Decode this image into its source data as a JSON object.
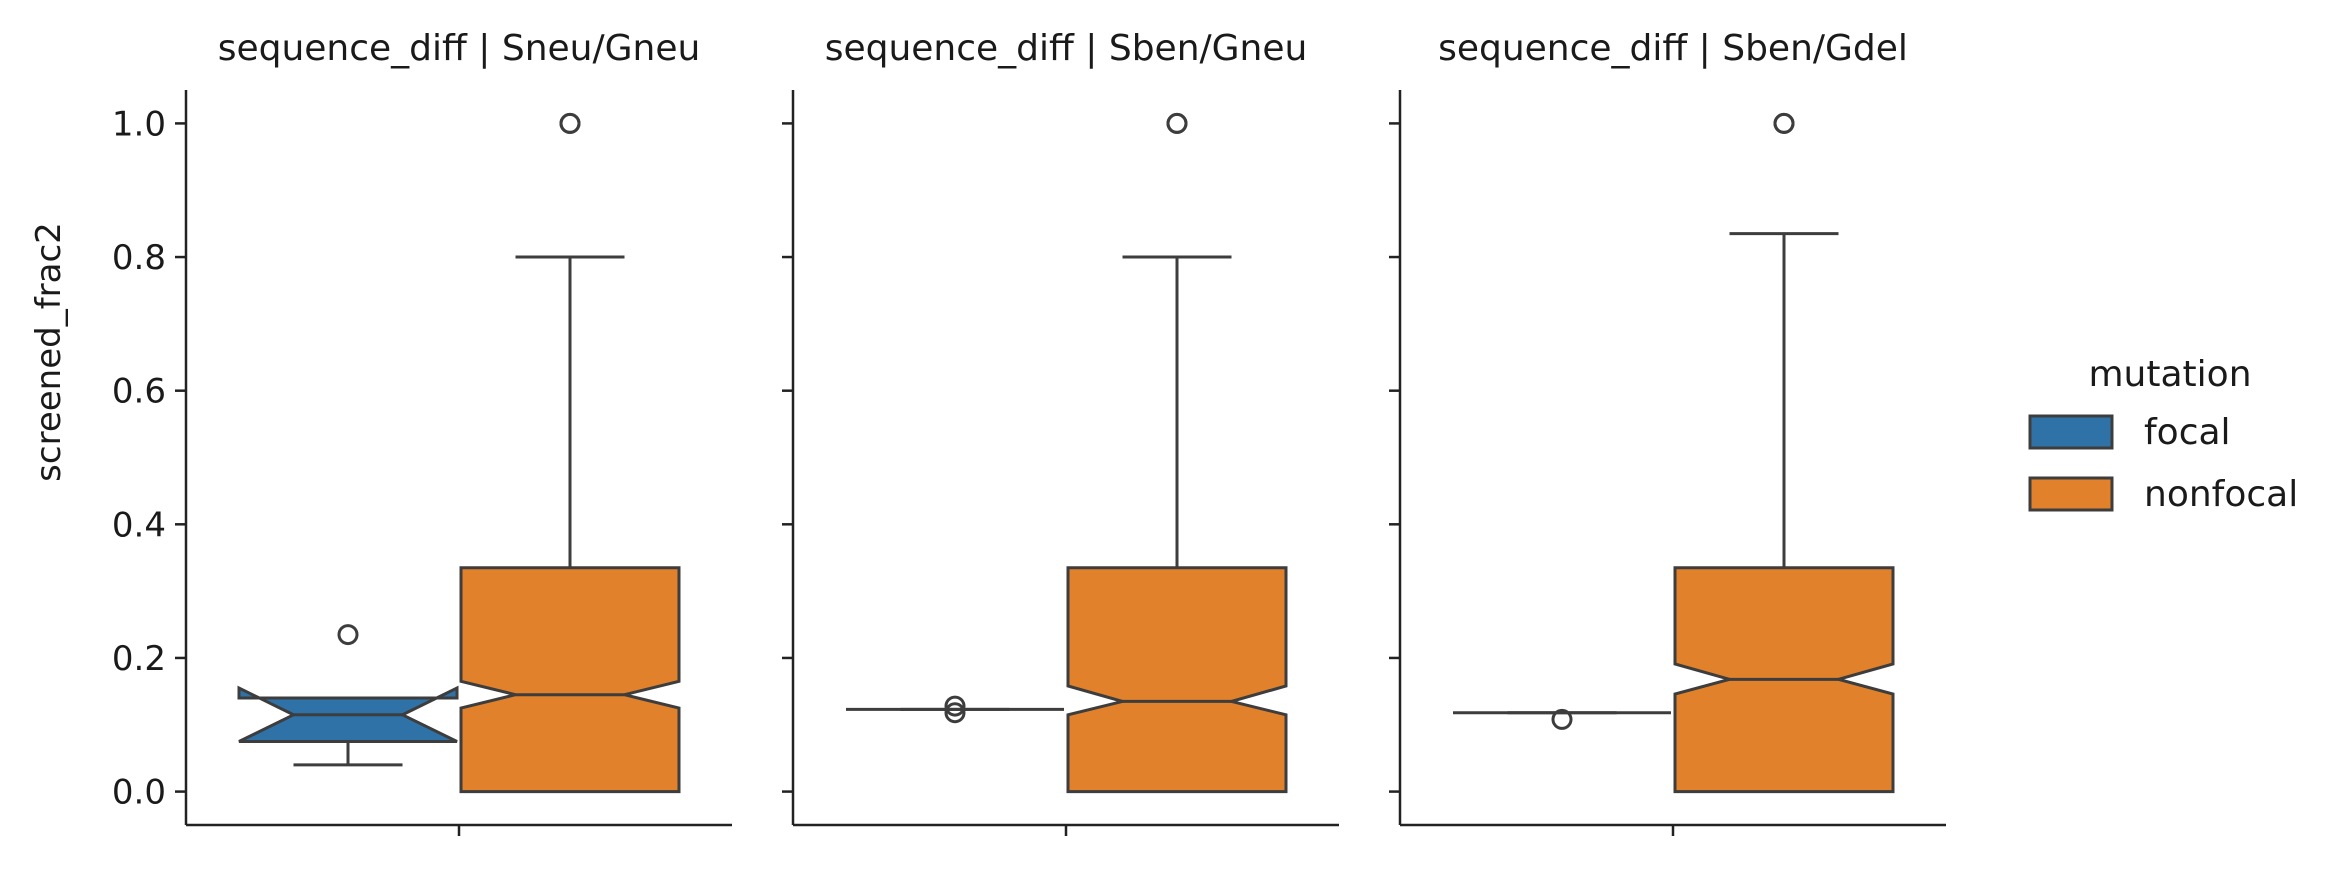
{
  "chart_data": {
    "type": "boxplot",
    "ylabel": "screened_frac2",
    "ylim": [
      -0.05,
      1.05
    ],
    "yticks": [
      "0.0",
      "0.2",
      "0.4",
      "0.6",
      "0.8",
      "1.0"
    ],
    "notched": true,
    "legend": {
      "title": "mutation",
      "position": "right",
      "entries": [
        {
          "name": "focal",
          "color": "#2e72a8"
        },
        {
          "name": "nonfocal",
          "color": "#e1812c"
        }
      ]
    },
    "panels": [
      {
        "title": "sequence_diff | Sneu/Gneu",
        "boxes": [
          {
            "group": "focal",
            "whisker_low": 0.04,
            "q1": 0.075,
            "median": 0.115,
            "q3": 0.14,
            "whisker_high": 0.14,
            "notch_low": 0.075,
            "notch_high": 0.155,
            "outliers": [
              0.235
            ]
          },
          {
            "group": "nonfocal",
            "whisker_low": 0.0,
            "q1": 0.0,
            "median": 0.145,
            "q3": 0.335,
            "whisker_high": 0.8,
            "notch_low": 0.125,
            "notch_high": 0.165,
            "outliers": [
              1.0,
              1.0
            ]
          }
        ]
      },
      {
        "title": "sequence_diff | Sben/Gneu",
        "boxes": [
          {
            "group": "focal",
            "whisker_low": 0.123,
            "q1": 0.123,
            "median": 0.123,
            "q3": 0.123,
            "whisker_high": 0.123,
            "notch_low": 0.123,
            "notch_high": 0.123,
            "outliers": [
              0.118,
              0.128
            ]
          },
          {
            "group": "nonfocal",
            "whisker_low": 0.0,
            "q1": 0.0,
            "median": 0.135,
            "q3": 0.335,
            "whisker_high": 0.8,
            "notch_low": 0.115,
            "notch_high": 0.158,
            "outliers": [
              1.0,
              1.0
            ]
          }
        ]
      },
      {
        "title": "sequence_diff | Sben/Gdel",
        "boxes": [
          {
            "group": "focal",
            "whisker_low": 0.118,
            "q1": 0.118,
            "median": 0.118,
            "q3": 0.118,
            "whisker_high": 0.118,
            "notch_low": 0.118,
            "notch_high": 0.118,
            "outliers": [
              0.108
            ]
          },
          {
            "group": "nonfocal",
            "whisker_low": 0.0,
            "q1": 0.0,
            "median": 0.168,
            "q3": 0.335,
            "whisker_high": 0.835,
            "notch_low": 0.146,
            "notch_high": 0.191,
            "outliers": [
              1.0,
              1.0
            ]
          }
        ]
      }
    ]
  },
  "colors": {
    "axis": "#222222",
    "edge": "#3d3d3d"
  }
}
